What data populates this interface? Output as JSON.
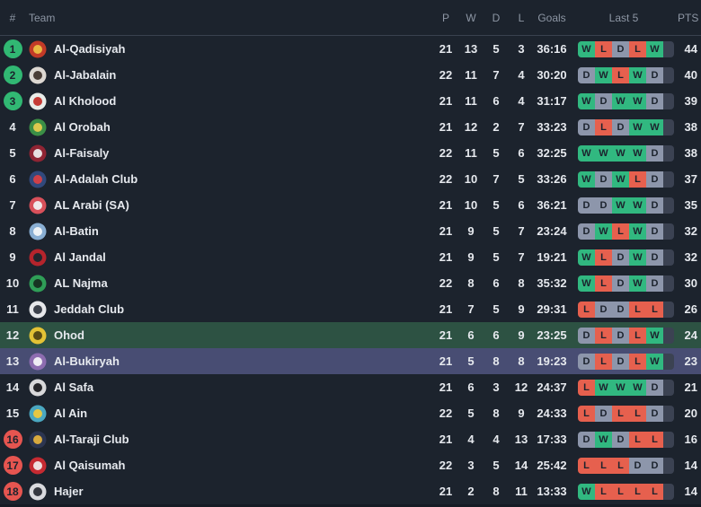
{
  "colors": {
    "background": "#1c232d",
    "header_text": "#8d96a4",
    "row_text": "#e6e9ee",
    "divider": "#39414e",
    "badge_green": "#31b873",
    "badge_red": "#e65550",
    "row_highlight_green": "#2d5243",
    "row_highlight_purple": "#484d73",
    "chip_win": "#31b880",
    "chip_loss": "#e6604e",
    "chip_draw": "#8d96ab",
    "chip_empty": "#3b4252",
    "chip_text": "#1c232d",
    "footer_strip": "#151b24"
  },
  "table": {
    "headers": {
      "pos": "#",
      "team": "Team",
      "p": "P",
      "w": "W",
      "d": "D",
      "l": "L",
      "goals": "Goals",
      "last5": "Last 5",
      "pts": "PTS"
    },
    "rows": [
      {
        "pos": 1,
        "badge": "green",
        "highlight": "",
        "team": "Al-Qadisiyah",
        "p": 21,
        "w": 13,
        "d": 5,
        "l": 3,
        "goals": "36:16",
        "last5": [
          "W",
          "L",
          "D",
          "L",
          "W"
        ],
        "pts": 44,
        "logo": {
          "bg": "#c23a27",
          "fg": "#e9b842"
        }
      },
      {
        "pos": 2,
        "badge": "green",
        "highlight": "",
        "team": "Al-Jabalain",
        "p": 22,
        "w": 11,
        "d": 7,
        "l": 4,
        "goals": "30:20",
        "last5": [
          "D",
          "W",
          "L",
          "W",
          "D"
        ],
        "pts": 40,
        "logo": {
          "bg": "#ddd8d2",
          "fg": "#4a3e37"
        }
      },
      {
        "pos": 3,
        "badge": "green",
        "highlight": "",
        "team": "Al Kholood",
        "p": 21,
        "w": 11,
        "d": 6,
        "l": 4,
        "goals": "31:17",
        "last5": [
          "W",
          "D",
          "W",
          "W",
          "D"
        ],
        "pts": 39,
        "logo": {
          "bg": "#e8ece8",
          "fg": "#c53b35"
        }
      },
      {
        "pos": 4,
        "badge": "",
        "highlight": "",
        "team": "Al Orobah",
        "p": 21,
        "w": 12,
        "d": 2,
        "l": 7,
        "goals": "33:23",
        "last5": [
          "D",
          "L",
          "D",
          "W",
          "W"
        ],
        "pts": 38,
        "logo": {
          "bg": "#3b8f46",
          "fg": "#dcc94e"
        }
      },
      {
        "pos": 5,
        "badge": "",
        "highlight": "",
        "team": "Al-Faisaly",
        "p": 22,
        "w": 11,
        "d": 5,
        "l": 6,
        "goals": "32:25",
        "last5": [
          "W",
          "W",
          "W",
          "W",
          "D"
        ],
        "pts": 38,
        "logo": {
          "bg": "#8f2433",
          "fg": "#e7dfe0"
        }
      },
      {
        "pos": 6,
        "badge": "",
        "highlight": "",
        "team": "Al-Adalah Club",
        "p": 22,
        "w": 10,
        "d": 7,
        "l": 5,
        "goals": "33:26",
        "last5": [
          "W",
          "D",
          "W",
          "L",
          "D"
        ],
        "pts": 37,
        "logo": {
          "bg": "#31497c",
          "fg": "#cf4048"
        }
      },
      {
        "pos": 7,
        "badge": "",
        "highlight": "",
        "team": "AL Arabi (SA)",
        "p": 21,
        "w": 10,
        "d": 5,
        "l": 6,
        "goals": "36:21",
        "last5": [
          "D",
          "D",
          "W",
          "W",
          "D"
        ],
        "pts": 35,
        "logo": {
          "bg": "#d8505a",
          "fg": "#f0e8ea"
        }
      },
      {
        "pos": 8,
        "badge": "",
        "highlight": "",
        "team": "Al-Batin",
        "p": 21,
        "w": 9,
        "d": 5,
        "l": 7,
        "goals": "23:24",
        "last5": [
          "D",
          "W",
          "L",
          "W",
          "D"
        ],
        "pts": 32,
        "logo": {
          "bg": "#89aed3",
          "fg": "#eef2f6"
        }
      },
      {
        "pos": 9,
        "badge": "",
        "highlight": "",
        "team": "Al Jandal",
        "p": 21,
        "w": 9,
        "d": 5,
        "l": 7,
        "goals": "19:21",
        "last5": [
          "W",
          "L",
          "D",
          "W",
          "D"
        ],
        "pts": 32,
        "logo": {
          "bg": "#b5242c",
          "fg": "#20262e"
        }
      },
      {
        "pos": 10,
        "badge": "",
        "highlight": "",
        "team": "AL Najma",
        "p": 22,
        "w": 8,
        "d": 6,
        "l": 8,
        "goals": "35:32",
        "last5": [
          "W",
          "L",
          "D",
          "W",
          "D"
        ],
        "pts": 30,
        "logo": {
          "bg": "#2f9e57",
          "fg": "#173422"
        }
      },
      {
        "pos": 11,
        "badge": "",
        "highlight": "",
        "team": "Jeddah Club",
        "p": 21,
        "w": 7,
        "d": 5,
        "l": 9,
        "goals": "29:31",
        "last5": [
          "L",
          "D",
          "D",
          "L",
          "L"
        ],
        "pts": 26,
        "logo": {
          "bg": "#e6e7ea",
          "fg": "#3c414b"
        }
      },
      {
        "pos": 12,
        "badge": "",
        "highlight": "green",
        "team": "Ohod",
        "p": 21,
        "w": 6,
        "d": 6,
        "l": 9,
        "goals": "23:25",
        "last5": [
          "D",
          "L",
          "D",
          "L",
          "W"
        ],
        "pts": 24,
        "logo": {
          "bg": "#e3c235",
          "fg": "#584a15"
        }
      },
      {
        "pos": 13,
        "badge": "",
        "highlight": "purple",
        "team": "Al-Bukiryah",
        "p": 21,
        "w": 5,
        "d": 8,
        "l": 8,
        "goals": "19:23",
        "last5": [
          "D",
          "L",
          "D",
          "L",
          "W"
        ],
        "pts": 23,
        "logo": {
          "bg": "#8d6cb0",
          "fg": "#efecf4"
        }
      },
      {
        "pos": 14,
        "badge": "",
        "highlight": "",
        "team": "Al Safa",
        "p": 21,
        "w": 6,
        "d": 3,
        "l": 12,
        "goals": "24:37",
        "last5": [
          "L",
          "W",
          "W",
          "W",
          "D"
        ],
        "pts": 21,
        "logo": {
          "bg": "#d8d8da",
          "fg": "#26262a"
        }
      },
      {
        "pos": 15,
        "badge": "",
        "highlight": "",
        "team": "Al Ain",
        "p": 22,
        "w": 5,
        "d": 8,
        "l": 9,
        "goals": "24:33",
        "last5": [
          "L",
          "D",
          "L",
          "L",
          "D"
        ],
        "pts": 20,
        "logo": {
          "bg": "#4aa7c0",
          "fg": "#e5c743"
        }
      },
      {
        "pos": 16,
        "badge": "red",
        "highlight": "",
        "team": "Al-Taraji Club",
        "p": 21,
        "w": 4,
        "d": 4,
        "l": 13,
        "goals": "17:33",
        "last5": [
          "D",
          "W",
          "D",
          "L",
          "L"
        ],
        "pts": 16,
        "logo": {
          "bg": "#2c3550",
          "fg": "#d8a93e"
        }
      },
      {
        "pos": 17,
        "badge": "red",
        "highlight": "",
        "team": "Al Qaisumah",
        "p": 22,
        "w": 3,
        "d": 5,
        "l": 14,
        "goals": "25:42",
        "last5": [
          "L",
          "L",
          "L",
          "D",
          "D"
        ],
        "pts": 14,
        "logo": {
          "bg": "#c62a31",
          "fg": "#efdede"
        }
      },
      {
        "pos": 18,
        "badge": "red",
        "highlight": "",
        "team": "Hajer",
        "p": 21,
        "w": 2,
        "d": 8,
        "l": 11,
        "goals": "13:33",
        "last5": [
          "W",
          "L",
          "L",
          "L",
          "L"
        ],
        "pts": 14,
        "logo": {
          "bg": "#d9dade",
          "fg": "#34373f"
        }
      }
    ]
  }
}
